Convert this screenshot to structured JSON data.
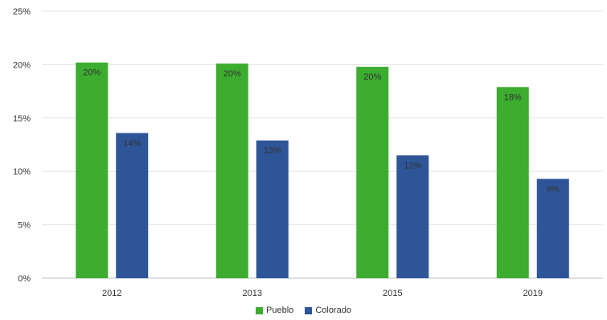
{
  "chart_data": {
    "type": "bar",
    "categories": [
      "2012",
      "2013",
      "2015",
      "2019"
    ],
    "series": [
      {
        "name": "Pueblo",
        "color": "#3cad2f",
        "values": [
          20.2,
          20.1,
          19.8,
          17.9
        ],
        "labels": [
          "20%",
          "20%",
          "20%",
          "18%"
        ]
      },
      {
        "name": "Colorado",
        "color": "#2d5597",
        "values": [
          13.6,
          12.9,
          11.5,
          9.3
        ],
        "labels": [
          "14%",
          "13%",
          "12%",
          "9%"
        ]
      }
    ],
    "ylim": [
      0,
      25
    ],
    "yticks": [
      0,
      5,
      10,
      15,
      20,
      25
    ],
    "ytick_labels": [
      "0%",
      "5%",
      "10%",
      "15%",
      "20%",
      "25%"
    ],
    "grid": true,
    "legend_position": "bottom-center",
    "title": "",
    "xlabel": "",
    "ylabel": ""
  }
}
